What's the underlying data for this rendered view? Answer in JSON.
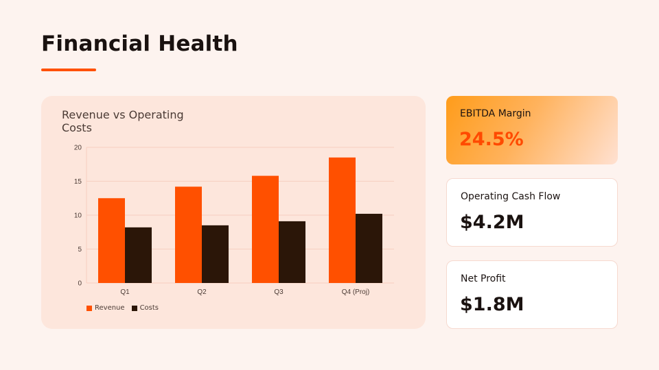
{
  "page": {
    "title": "Financial Health"
  },
  "colors": {
    "accent": "#ff5000",
    "revenue": "#ff5000",
    "costs": "#2b1608",
    "background": "#fdf3ef",
    "card": "#fde6dc"
  },
  "chart_data": {
    "type": "bar",
    "title": "Revenue vs Operating Costs",
    "categories": [
      "Q1",
      "Q2",
      "Q3",
      "Q4 (Proj)"
    ],
    "series": [
      {
        "name": "Revenue",
        "values": [
          12.5,
          14.2,
          15.8,
          18.5
        ]
      },
      {
        "name": "Costs",
        "values": [
          8.2,
          8.5,
          9.1,
          10.2
        ]
      }
    ],
    "yticks": [
      0,
      5,
      10,
      15,
      20
    ],
    "ylim": [
      0,
      20
    ],
    "xlabel": "",
    "ylabel": "",
    "grid": true,
    "legend": "bottom-left"
  },
  "kpis": [
    {
      "label": "EBITDA Margin",
      "value": "24.5%"
    },
    {
      "label": "Operating Cash Flow",
      "value": "$4.2M"
    },
    {
      "label": "Net Profit",
      "value": "$1.8M"
    }
  ]
}
